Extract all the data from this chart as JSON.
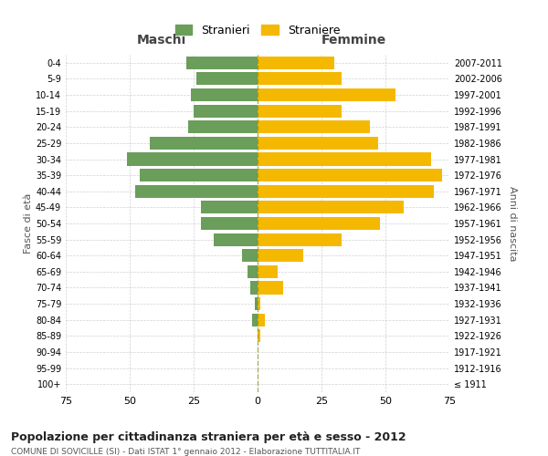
{
  "age_groups": [
    "0-4",
    "5-9",
    "10-14",
    "15-19",
    "20-24",
    "25-29",
    "30-34",
    "35-39",
    "40-44",
    "45-49",
    "50-54",
    "55-59",
    "60-64",
    "65-69",
    "70-74",
    "75-79",
    "80-84",
    "85-89",
    "90-94",
    "95-99",
    "100+"
  ],
  "birth_years": [
    "2007-2011",
    "2002-2006",
    "1997-2001",
    "1992-1996",
    "1987-1991",
    "1982-1986",
    "1977-1981",
    "1972-1976",
    "1967-1971",
    "1962-1966",
    "1957-1961",
    "1952-1956",
    "1947-1951",
    "1942-1946",
    "1937-1941",
    "1932-1936",
    "1927-1931",
    "1922-1926",
    "1917-1921",
    "1912-1916",
    "≤ 1911"
  ],
  "maschi": [
    28,
    24,
    26,
    25,
    27,
    42,
    51,
    46,
    48,
    22,
    22,
    17,
    6,
    4,
    3,
    1,
    2,
    0,
    0,
    0,
    0
  ],
  "femmine": [
    30,
    33,
    54,
    33,
    44,
    47,
    68,
    72,
    69,
    57,
    48,
    33,
    18,
    8,
    10,
    1,
    3,
    1,
    0,
    0,
    0
  ],
  "maschi_color": "#6a9e5a",
  "femmine_color": "#f5b800",
  "background_color": "#ffffff",
  "grid_color": "#cccccc",
  "title": "Popolazione per cittadinanza straniera per età e sesso - 2012",
  "subtitle": "COMUNE DI SOVICILLE (SI) - Dati ISTAT 1° gennaio 2012 - Elaborazione TUTTITALIA.IT",
  "xlabel_left": "Maschi",
  "xlabel_right": "Femmine",
  "ylabel_left": "Fasce di età",
  "ylabel_right": "Anni di nascita",
  "legend_stranieri": "Stranieri",
  "legend_straniere": "Straniere",
  "xlim": 75
}
